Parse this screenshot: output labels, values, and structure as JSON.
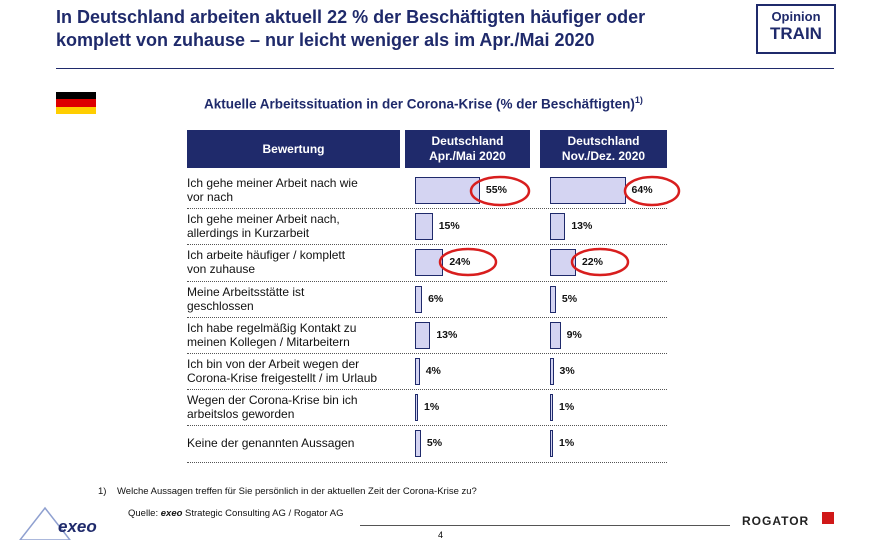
{
  "header": {
    "title": "In Deutschland arbeiten aktuell 22 % der Beschäftigten häufiger oder\nkomplett von zuhause – nur leicht weniger als im Apr./Mai 2020",
    "brand_line1": "Opinion",
    "brand_line2": "TRAIN"
  },
  "chart_data": {
    "type": "bar",
    "orientation": "horizontal",
    "title": "Aktuelle Arbeitssituation in der Corona-Krise (% der Beschäftigten)",
    "title_note": "1)",
    "category_header": "Bewertung",
    "categories": [
      "Ich gehe meiner Arbeit nach wie\nvor nach",
      "Ich gehe meiner Arbeit nach,\nallerdings in Kurzarbeit",
      "Ich arbeite häufiger / komplett\nvon zuhause",
      "Meine Arbeitsstätte ist\ngeschlossen",
      "Ich habe regelmäßig Kontakt zu\nmeinen Kollegen / Mitarbeitern",
      "Ich bin von der Arbeit wegen der\nCorona-Krise freigestellt / im Urlaub",
      "Wegen der Corona-Krise bin ich\narbeitslos geworden",
      "Keine der genannten Aussagen"
    ],
    "series": [
      {
        "name": "Deutschland\nApr./Mai 2020",
        "color": "#d4d4f2",
        "values": [
          55,
          15,
          24,
          6,
          13,
          4,
          1,
          5
        ],
        "value_labels": [
          "55%",
          "15%",
          "24%",
          "6%",
          "13%",
          "4%",
          "1%",
          "5%"
        ]
      },
      {
        "name": "Deutschland\nNov./Dez. 2020",
        "color": "#d4d4f2",
        "values": [
          64,
          13,
          22,
          5,
          9,
          3,
          1,
          1
        ],
        "value_labels": [
          "64%",
          "13%",
          "22%",
          "5%",
          "9%",
          "3%",
          "1%",
          "1%"
        ]
      }
    ]
  },
  "footer": {
    "note_marker": "1)",
    "note": "Welche Aussagen treffen für Sie persönlich in der aktuellen Zeit der Corona-Krise zu?",
    "source_prefix": "Quelle:",
    "source_brand": "exeo",
    "source_text": "Strategic Consulting AG / Rogator AG",
    "logo_left": "exeo",
    "logo_right": "ROGATOR",
    "page": "4"
  }
}
